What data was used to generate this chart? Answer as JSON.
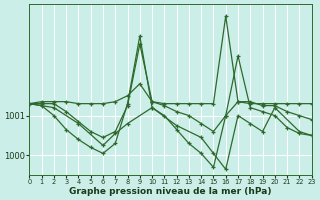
{
  "title": "Graphe pression niveau de la mer (hPa)",
  "bg_color": "#cceee8",
  "grid_color": "#ffffff",
  "line_color": "#2d6a2d",
  "xlim": [
    0,
    23
  ],
  "ylim": [
    999.5,
    1003.8
  ],
  "ytick_positions": [
    1000,
    1001
  ],
  "ytick_labels": [
    "1000",
    "1001"
  ],
  "xticks": [
    0,
    1,
    2,
    3,
    4,
    5,
    6,
    7,
    8,
    9,
    10,
    11,
    12,
    13,
    14,
    15,
    16,
    17,
    18,
    19,
    20,
    21,
    22,
    23
  ],
  "series": [
    {
      "x": [
        0,
        1,
        2,
        3,
        4,
        5,
        6,
        7,
        8,
        9,
        10,
        11,
        12,
        13,
        14,
        15,
        16,
        17,
        18,
        19,
        20,
        21,
        22,
        23
      ],
      "y": [
        1001.3,
        1001.35,
        1001.35,
        1001.35,
        1001.3,
        1001.3,
        1001.3,
        1001.35,
        1001.5,
        1001.8,
        1001.35,
        1001.3,
        1001.3,
        1001.3,
        1001.3,
        1001.3,
        1003.5,
        1001.35,
        1001.3,
        1001.3,
        1001.3,
        1001.3,
        1001.3,
        1001.3
      ]
    },
    {
      "x": [
        0,
        1,
        2,
        3,
        4,
        5,
        6,
        7,
        8,
        9,
        10,
        11,
        12,
        13,
        14,
        15,
        16,
        17,
        18,
        19,
        20,
        21,
        22,
        23
      ],
      "y": [
        1001.3,
        1001.3,
        1001.3,
        1001.1,
        1000.85,
        1000.6,
        1000.45,
        1000.6,
        1001.25,
        1002.8,
        1001.35,
        1001.25,
        1001.1,
        1001.0,
        1000.8,
        1000.6,
        1001.0,
        1001.35,
        1001.35,
        1001.25,
        1001.25,
        1001.1,
        1001.0,
        1000.9
      ]
    },
    {
      "x": [
        0,
        1,
        2,
        3,
        4,
        5,
        6,
        7,
        8,
        9,
        10,
        11,
        12,
        13,
        14,
        15,
        16,
        17,
        18,
        19,
        20,
        21,
        22,
        23
      ],
      "y": [
        1001.3,
        1001.25,
        1001.0,
        1000.65,
        1000.4,
        1000.2,
        1000.05,
        1000.3,
        1001.3,
        1003.0,
        1001.2,
        1001.0,
        1000.65,
        1000.3,
        1000.05,
        999.7,
        1001.0,
        1002.5,
        1001.2,
        1001.1,
        1001.0,
        1000.7,
        1000.55,
        1000.5
      ]
    },
    {
      "x": [
        0,
        2,
        4,
        6,
        7,
        8,
        10,
        12,
        14,
        15,
        16,
        17,
        18,
        19,
        20,
        22,
        23
      ],
      "y": [
        1001.3,
        1001.2,
        1000.8,
        1000.25,
        1000.55,
        1000.8,
        1001.2,
        1000.75,
        1000.45,
        1000.05,
        999.65,
        1001.0,
        1000.8,
        1000.6,
        1001.2,
        1000.6,
        1000.5
      ]
    }
  ]
}
